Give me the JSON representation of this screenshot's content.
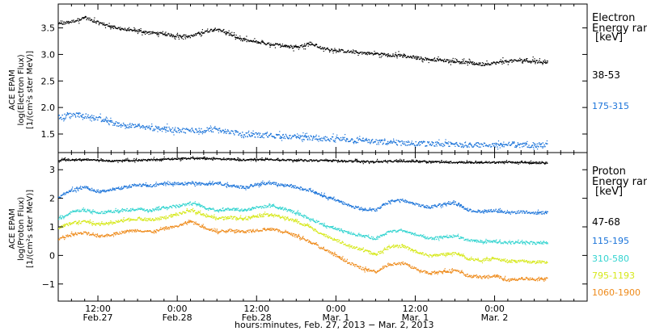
{
  "chart_data": [
    {
      "type": "scatter",
      "panel": "electron",
      "ylabel_lines": [
        "ACE EPAM",
        "log(Electron Flux)",
        "[1/(cm²s ster MeV)]"
      ],
      "ylim": [
        1.15,
        3.95
      ],
      "yticks": [
        1.5,
        2.0,
        2.5,
        3.0,
        3.5
      ],
      "ytick_labels": [
        "1.5",
        "2.0",
        "2.5",
        "3.0",
        "3.5"
      ],
      "legend_title": [
        "Electron",
        "Energy ran",
        "[keV]"
      ],
      "series": [
        {
          "name": "38-53",
          "color": "#000000",
          "points": [
            [
              0,
              3.58
            ],
            [
              2,
              3.63
            ],
            [
              4,
              3.7
            ],
            [
              6,
              3.61
            ],
            [
              8,
              3.53
            ],
            [
              10,
              3.48
            ],
            [
              14,
              3.42
            ],
            [
              18,
              3.36
            ],
            [
              20,
              3.35
            ],
            [
              22,
              3.43
            ],
            [
              24,
              3.5
            ],
            [
              26,
              3.38
            ],
            [
              28,
              3.28
            ],
            [
              32,
              3.2
            ],
            [
              34,
              3.18
            ],
            [
              36,
              3.14
            ],
            [
              38,
              3.22
            ],
            [
              40,
              3.12
            ],
            [
              44,
              3.06
            ],
            [
              48,
              3.02
            ],
            [
              52,
              2.98
            ],
            [
              56,
              2.92
            ],
            [
              60,
              2.88
            ],
            [
              64,
              2.82
            ],
            [
              66,
              2.85
            ],
            [
              68,
              2.88
            ],
            [
              70,
              2.9
            ],
            [
              72,
              2.88
            ],
            [
              74,
              2.86
            ]
          ]
        },
        {
          "name": "175-315",
          "color": "#1a73d9",
          "points": [
            [
              0,
              1.82
            ],
            [
              2,
              1.87
            ],
            [
              4,
              1.85
            ],
            [
              6,
              1.8
            ],
            [
              8,
              1.72
            ],
            [
              10,
              1.68
            ],
            [
              14,
              1.62
            ],
            [
              18,
              1.58
            ],
            [
              22,
              1.58
            ],
            [
              24,
              1.6
            ],
            [
              26,
              1.55
            ],
            [
              28,
              1.5
            ],
            [
              32,
              1.48
            ],
            [
              36,
              1.45
            ],
            [
              40,
              1.42
            ],
            [
              44,
              1.4
            ],
            [
              48,
              1.36
            ],
            [
              52,
              1.34
            ],
            [
              56,
              1.32
            ],
            [
              60,
              1.31
            ],
            [
              64,
              1.3
            ],
            [
              68,
              1.31
            ],
            [
              72,
              1.3
            ],
            [
              74,
              1.3
            ]
          ]
        }
      ]
    },
    {
      "type": "scatter",
      "panel": "proton",
      "ylabel_lines": [
        "ACE EPAM",
        "log(Proton Flux)",
        "[1/(cm²s ster MeV)]"
      ],
      "ylim": [
        -1.6,
        3.6
      ],
      "yticks": [
        -1,
        0,
        1,
        2,
        3
      ],
      "ytick_labels": [
        "−1",
        "0",
        "1",
        "2",
        "3"
      ],
      "xlabel": "hours:minutes, Feb. 27, 2013 − Mar.  2, 2013",
      "xlim": [
        0,
        80
      ],
      "xticks": [
        {
          "h": 6,
          "top": "12:00",
          "bottom": "Feb.27"
        },
        {
          "h": 18,
          "top": "0:00",
          "bottom": "Feb.28"
        },
        {
          "h": 30,
          "top": "12:00",
          "bottom": "Feb.28"
        },
        {
          "h": 42,
          "top": "0:00",
          "bottom": "Mar.  1"
        },
        {
          "h": 54,
          "top": "12:00",
          "bottom": "Mar.  1"
        },
        {
          "h": 66,
          "top": "0:00",
          "bottom": "Mar.  2"
        }
      ],
      "legend_title": [
        "Proton",
        "Energy ran",
        "[keV]"
      ],
      "series": [
        {
          "name": "47-68",
          "color": "#000000",
          "points": [
            [
              0,
              3.35
            ],
            [
              4,
              3.38
            ],
            [
              8,
              3.32
            ],
            [
              12,
              3.35
            ],
            [
              16,
              3.38
            ],
            [
              20,
              3.42
            ],
            [
              24,
              3.4
            ],
            [
              28,
              3.36
            ],
            [
              32,
              3.38
            ],
            [
              36,
              3.35
            ],
            [
              40,
              3.34
            ],
            [
              44,
              3.32
            ],
            [
              48,
              3.3
            ],
            [
              52,
              3.32
            ],
            [
              56,
              3.3
            ],
            [
              60,
              3.28
            ],
            [
              64,
              3.27
            ],
            [
              68,
              3.28
            ],
            [
              72,
              3.26
            ],
            [
              74,
              3.26
            ]
          ]
        },
        {
          "name": "115-195",
          "color": "#1a73d9",
          "points": [
            [
              0,
              2.05
            ],
            [
              2,
              2.3
            ],
            [
              4,
              2.4
            ],
            [
              6,
              2.25
            ],
            [
              8,
              2.3
            ],
            [
              10,
              2.4
            ],
            [
              12,
              2.5
            ],
            [
              14,
              2.45
            ],
            [
              16,
              2.55
            ],
            [
              18,
              2.52
            ],
            [
              20,
              2.55
            ],
            [
              22,
              2.5
            ],
            [
              24,
              2.55
            ],
            [
              26,
              2.45
            ],
            [
              28,
              2.4
            ],
            [
              30,
              2.5
            ],
            [
              32,
              2.55
            ],
            [
              34,
              2.48
            ],
            [
              36,
              2.4
            ],
            [
              38,
              2.3
            ],
            [
              40,
              2.1
            ],
            [
              42,
              1.95
            ],
            [
              44,
              1.75
            ],
            [
              46,
              1.65
            ],
            [
              48,
              1.6
            ],
            [
              50,
              1.9
            ],
            [
              52,
              1.95
            ],
            [
              54,
              1.8
            ],
            [
              56,
              1.7
            ],
            [
              58,
              1.8
            ],
            [
              60,
              1.85
            ],
            [
              62,
              1.6
            ],
            [
              64,
              1.55
            ],
            [
              66,
              1.6
            ],
            [
              68,
              1.5
            ],
            [
              70,
              1.55
            ],
            [
              72,
              1.5
            ],
            [
              74,
              1.52
            ]
          ]
        },
        {
          "name": "310-580",
          "color": "#33d4d0",
          "points": [
            [
              0,
              1.3
            ],
            [
              2,
              1.55
            ],
            [
              4,
              1.6
            ],
            [
              6,
              1.5
            ],
            [
              8,
              1.55
            ],
            [
              10,
              1.6
            ],
            [
              12,
              1.65
            ],
            [
              14,
              1.6
            ],
            [
              16,
              1.7
            ],
            [
              18,
              1.75
            ],
            [
              20,
              1.85
            ],
            [
              22,
              1.7
            ],
            [
              24,
              1.6
            ],
            [
              26,
              1.65
            ],
            [
              28,
              1.6
            ],
            [
              30,
              1.7
            ],
            [
              32,
              1.75
            ],
            [
              34,
              1.65
            ],
            [
              36,
              1.5
            ],
            [
              38,
              1.3
            ],
            [
              40,
              1.1
            ],
            [
              42,
              0.95
            ],
            [
              44,
              0.8
            ],
            [
              46,
              0.7
            ],
            [
              48,
              0.6
            ],
            [
              50,
              0.85
            ],
            [
              52,
              0.9
            ],
            [
              54,
              0.75
            ],
            [
              56,
              0.6
            ],
            [
              58,
              0.65
            ],
            [
              60,
              0.7
            ],
            [
              62,
              0.55
            ],
            [
              64,
              0.5
            ],
            [
              66,
              0.5
            ],
            [
              68,
              0.45
            ],
            [
              70,
              0.48
            ],
            [
              72,
              0.45
            ],
            [
              74,
              0.48
            ]
          ]
        },
        {
          "name": "795-1193",
          "color": "#d6e81a",
          "points": [
            [
              0,
              1.0
            ],
            [
              2,
              1.15
            ],
            [
              4,
              1.2
            ],
            [
              6,
              1.1
            ],
            [
              8,
              1.15
            ],
            [
              10,
              1.25
            ],
            [
              12,
              1.3
            ],
            [
              14,
              1.25
            ],
            [
              16,
              1.35
            ],
            [
              18,
              1.45
            ],
            [
              20,
              1.6
            ],
            [
              22,
              1.45
            ],
            [
              24,
              1.3
            ],
            [
              26,
              1.35
            ],
            [
              28,
              1.3
            ],
            [
              30,
              1.4
            ],
            [
              32,
              1.45
            ],
            [
              34,
              1.35
            ],
            [
              36,
              1.2
            ],
            [
              38,
              1.0
            ],
            [
              40,
              0.75
            ],
            [
              42,
              0.55
            ],
            [
              44,
              0.35
            ],
            [
              46,
              0.2
            ],
            [
              48,
              0.05
            ],
            [
              50,
              0.3
            ],
            [
              52,
              0.35
            ],
            [
              54,
              0.15
            ],
            [
              56,
              0.0
            ],
            [
              58,
              0.05
            ],
            [
              60,
              0.1
            ],
            [
              62,
              -0.1
            ],
            [
              64,
              -0.15
            ],
            [
              66,
              -0.1
            ],
            [
              68,
              -0.2
            ],
            [
              70,
              -0.18
            ],
            [
              72,
              -0.22
            ],
            [
              74,
              -0.2
            ]
          ]
        },
        {
          "name": "1060-1900",
          "color": "#ee8a1a",
          "points": [
            [
              0,
              0.6
            ],
            [
              2,
              0.75
            ],
            [
              4,
              0.8
            ],
            [
              6,
              0.7
            ],
            [
              8,
              0.75
            ],
            [
              10,
              0.85
            ],
            [
              12,
              0.9
            ],
            [
              14,
              0.85
            ],
            [
              16,
              0.95
            ],
            [
              18,
              1.05
            ],
            [
              20,
              1.2
            ],
            [
              22,
              1.0
            ],
            [
              24,
              0.85
            ],
            [
              26,
              0.9
            ],
            [
              28,
              0.85
            ],
            [
              30,
              0.9
            ],
            [
              32,
              0.95
            ],
            [
              34,
              0.85
            ],
            [
              36,
              0.7
            ],
            [
              38,
              0.5
            ],
            [
              40,
              0.25
            ],
            [
              42,
              0.0
            ],
            [
              44,
              -0.25
            ],
            [
              46,
              -0.45
            ],
            [
              48,
              -0.55
            ],
            [
              50,
              -0.3
            ],
            [
              52,
              -0.25
            ],
            [
              54,
              -0.45
            ],
            [
              56,
              -0.6
            ],
            [
              58,
              -0.55
            ],
            [
              60,
              -0.5
            ],
            [
              62,
              -0.7
            ],
            [
              64,
              -0.75
            ],
            [
              66,
              -0.7
            ],
            [
              68,
              -0.85
            ],
            [
              70,
              -0.8
            ],
            [
              72,
              -0.82
            ],
            [
              74,
              -0.8
            ]
          ]
        }
      ]
    }
  ]
}
